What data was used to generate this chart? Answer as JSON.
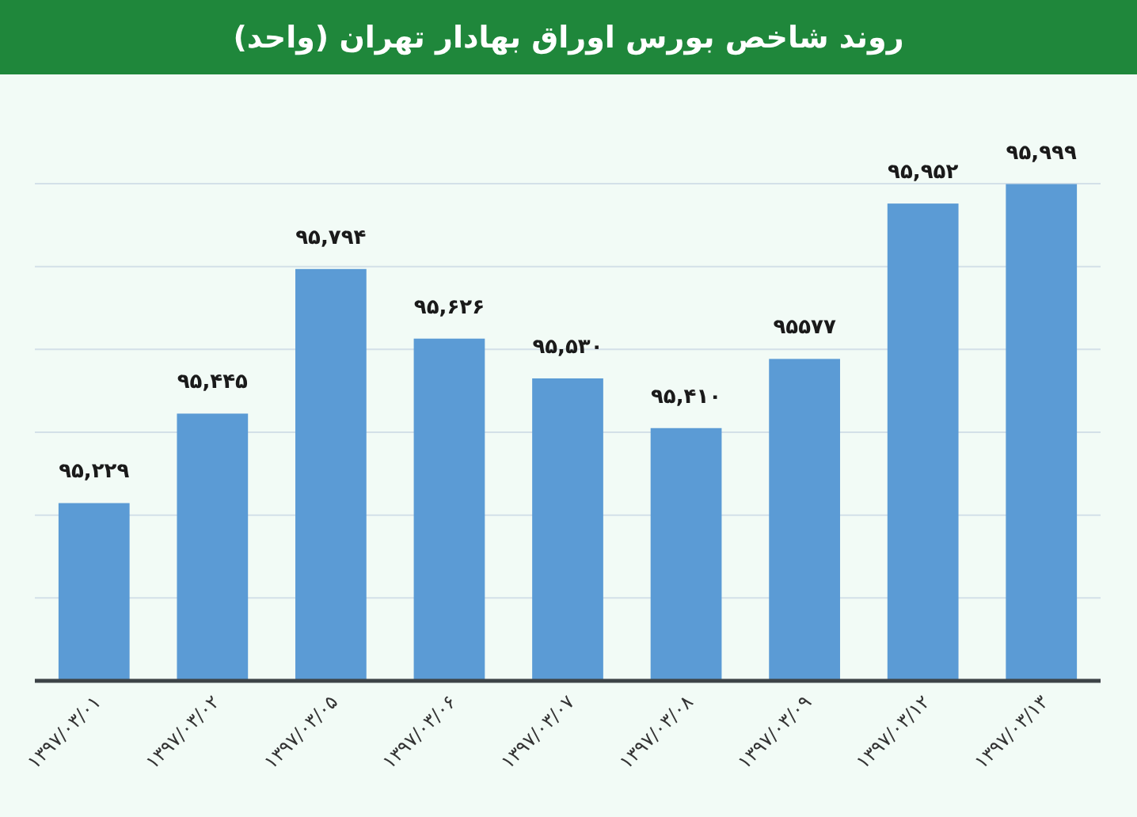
{
  "chart_data": {
    "type": "bar",
    "title": "روند شاخص بورس اوراق بهادار تهران (واحد)",
    "categories": [
      "۱۳۹۷/۰۳/۰۱",
      "۱۳۹۷/۰۳/۰۲",
      "۱۳۹۷/۰۳/۰۵",
      "۱۳۹۷/۰۳/۰۶",
      "۱۳۹۷/۰۳/۰۷",
      "۱۳۹۷/۰۳/۰۸",
      "۱۳۹۷/۰۳/۰۹",
      "۱۳۹۷/۰۳/۱۲",
      "۱۳۹۷/۰۳/۱۳"
    ],
    "values": [
      95229,
      95445,
      95794,
      95626,
      95530,
      95410,
      95577,
      95952,
      95999
    ],
    "value_labels": [
      "۹۵,۲۲۹",
      "۹۵,۴۴۵",
      "۹۵,۷۹۴",
      "۹۵,۶۲۶",
      "۹۵,۵۳۰",
      "۹۵,۴۱۰",
      "۹۵۵۷۷",
      "۹۵,۹۵۲",
      "۹۵,۹۹۹"
    ],
    "color": "#5b9bd5",
    "ylim": [
      94800,
      96000
    ],
    "yticks": [
      {
        "value": 94800,
        "label": null
      },
      {
        "value": 95000,
        "label": null
      },
      {
        "value": 95200,
        "label": null
      },
      {
        "value": 95400,
        "label": null
      },
      {
        "value": 95600,
        "label": null
      },
      {
        "value": 95800,
        "label": null
      },
      {
        "value": 96000,
        "label": null
      }
    ],
    "grid": "y",
    "tick_labels": "x"
  }
}
